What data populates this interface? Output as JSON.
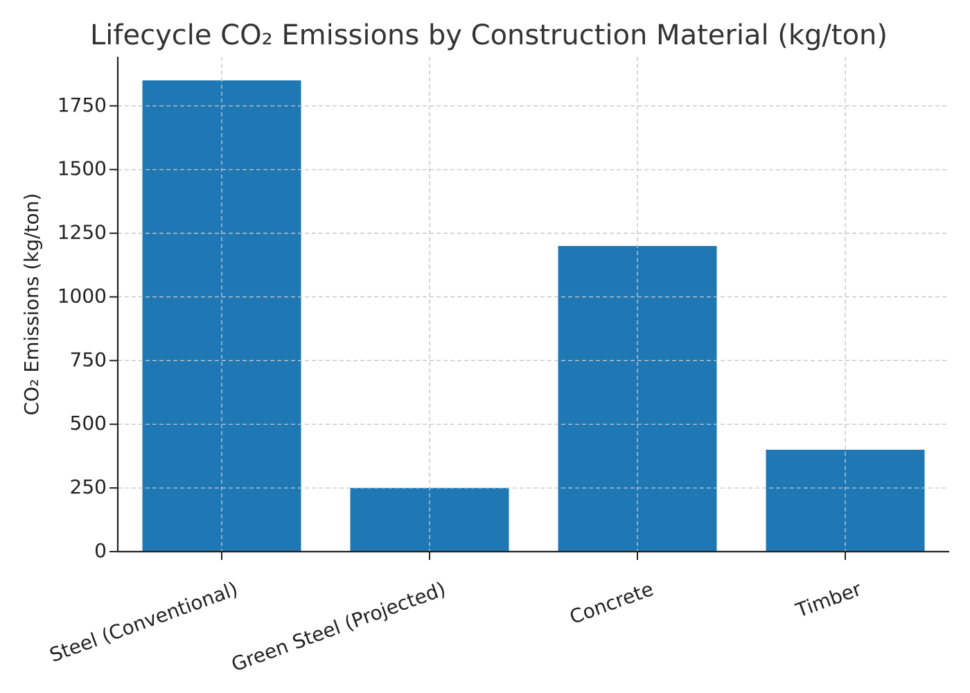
{
  "chart_data": {
    "type": "bar",
    "title": "Lifecycle CO₂ Emissions by Construction Material (kg/ton)",
    "xlabel": "",
    "ylabel": "CO₂ Emissions (kg/ton)",
    "categories": [
      "Steel (Conventional)",
      "Green Steel (Projected)",
      "Concrete",
      "Timber"
    ],
    "values": [
      1850,
      250,
      1200,
      400
    ],
    "ylim": [
      0,
      1942.5
    ],
    "yticks": [
      0,
      250,
      500,
      750,
      1000,
      1250,
      1500,
      1750
    ],
    "grid": true,
    "legend": "none",
    "bar_color": "#1f77b4"
  }
}
